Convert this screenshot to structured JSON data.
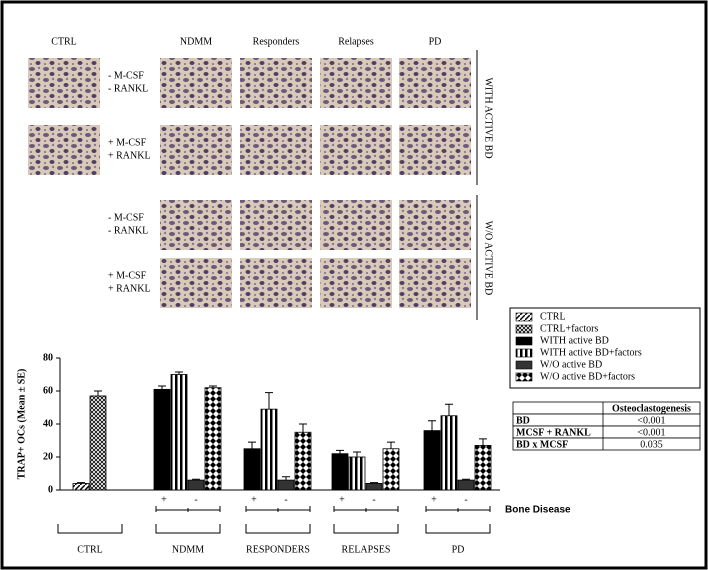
{
  "panel": {
    "columns": [
      "CTRL",
      "NDMM",
      "Responders",
      "Relapses",
      "PD"
    ],
    "rows": [
      [
        "- M-CSF",
        "- RANKL"
      ],
      [
        "+ M-CSF",
        "+ RANKL"
      ],
      [
        "- M-CSF",
        "- RANKL"
      ],
      [
        "+ M-CSF",
        "+ RANKL"
      ]
    ],
    "side_labels": [
      "WITH ACTIVE BD",
      "W/O ACTIVE BD"
    ]
  },
  "chart_data": {
    "type": "bar",
    "ylabel": "TRAP+ OCs (Mean ± SE)",
    "xlabel": "Bone Disease",
    "x_sublabels": [
      "+",
      "-"
    ],
    "categories": [
      "CTRL",
      "NDMM",
      "RESPONDERS",
      "RELAPSES",
      "PD"
    ],
    "ylim": [
      0,
      80
    ],
    "yticks": [
      0,
      20,
      40,
      60,
      80
    ],
    "series": [
      {
        "name": "CTRL",
        "pattern": "diagonal",
        "color": "#000000",
        "values": [
          4,
          null,
          null,
          null,
          null
        ],
        "errors": [
          0.5,
          null,
          null,
          null,
          null
        ]
      },
      {
        "name": "CTRL+factors",
        "pattern": "crosshatch",
        "color": "#000000",
        "values": [
          57,
          null,
          null,
          null,
          null
        ],
        "errors": [
          3,
          null,
          null,
          null,
          null
        ]
      },
      {
        "name": "WITH active BD",
        "pattern": "solid",
        "color": "#000000",
        "values": [
          null,
          61,
          25,
          22,
          36
        ],
        "errors": [
          null,
          2,
          4,
          2,
          6
        ]
      },
      {
        "name": "WITH active BD+factors",
        "pattern": "vertical",
        "color": "#000000",
        "values": [
          null,
          70,
          49,
          20,
          45
        ],
        "errors": [
          null,
          1.5,
          10,
          3,
          7
        ]
      },
      {
        "name": "W/O active BD",
        "pattern": "solid",
        "color": "#333333",
        "values": [
          null,
          6,
          6,
          4,
          6
        ],
        "errors": [
          null,
          0.5,
          2,
          0.5,
          0.5
        ]
      },
      {
        "name": "W/O active BD+factors",
        "pattern": "checker",
        "color": "#000000",
        "values": [
          null,
          62,
          35,
          25,
          27
        ],
        "errors": [
          null,
          1,
          5,
          4,
          4
        ]
      }
    ]
  },
  "table": {
    "header": [
      "",
      "Osteoclastogenesis"
    ],
    "rows": [
      [
        "BD",
        "<0.001"
      ],
      [
        "MCSF + RANKL",
        "<0.001"
      ],
      [
        "BD x MCSF",
        "0.035"
      ]
    ]
  }
}
